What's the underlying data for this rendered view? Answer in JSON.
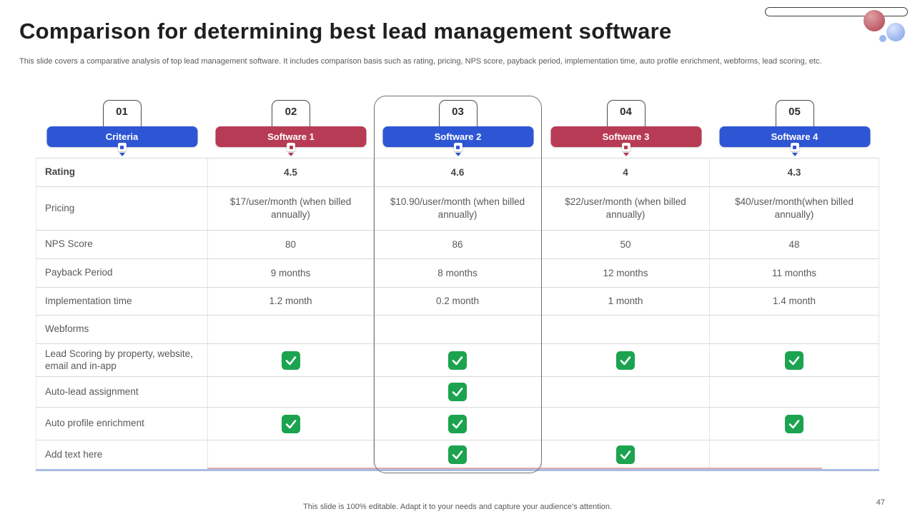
{
  "slide": {
    "title": "Comparison for determining best lead management software",
    "subtitle": "This slide covers a comparative analysis of top lead management software. It includes comparison basis such as rating, pricing, NPS score, payback period, implementation time, auto profile enrichment, webforms, lead scoring, etc.",
    "footer": "This slide is 100% editable. Adapt it to your needs and capture your audience's attention.",
    "page_number": "47"
  },
  "colors": {
    "blue_accent": "#2e56d4",
    "red_accent": "#b83b55",
    "check_green": "#1ca350"
  },
  "table": {
    "columns": [
      {
        "number": "01",
        "label": "Criteria",
        "color": "blue",
        "highlighted": false
      },
      {
        "number": "02",
        "label": "Software 1",
        "color": "red",
        "highlighted": false
      },
      {
        "number": "03",
        "label": "Software 2",
        "color": "blue",
        "highlighted": true
      },
      {
        "number": "04",
        "label": "Software 3",
        "color": "red",
        "highlighted": false
      },
      {
        "number": "05",
        "label": "Software 4",
        "color": "blue",
        "highlighted": false
      }
    ],
    "rows": [
      {
        "label": "Rating",
        "type": "text",
        "bold": true,
        "values": [
          "4.5",
          "4.6",
          "4",
          "4.3"
        ]
      },
      {
        "label": "Pricing",
        "type": "text",
        "bold": false,
        "values": [
          "$17/user/month (when billed annually)",
          "$10.90/user/month (when billed annually)",
          "$22/user/month (when billed annually)",
          "$40/user/month(when billed annually)"
        ]
      },
      {
        "label": "NPS Score",
        "type": "text",
        "bold": false,
        "values": [
          "80",
          "86",
          "50",
          "48"
        ]
      },
      {
        "label": "Payback Period",
        "type": "text",
        "bold": false,
        "values": [
          "9 months",
          "8 months",
          "12 months",
          "11 months"
        ]
      },
      {
        "label": "Implementation time",
        "type": "text",
        "bold": false,
        "values": [
          "1.2 month",
          "0.2 month",
          "1 month",
          "1.4 month"
        ]
      },
      {
        "label": "Webforms",
        "type": "check",
        "bold": false,
        "values": [
          false,
          false,
          false,
          false
        ]
      },
      {
        "label": "Lead Scoring by property, website, email and in-app",
        "type": "check",
        "bold": false,
        "values": [
          true,
          true,
          true,
          true
        ]
      },
      {
        "label": "Auto-lead assignment",
        "type": "check",
        "bold": false,
        "values": [
          false,
          true,
          false,
          false
        ]
      },
      {
        "label": "Auto profile enrichment",
        "type": "check",
        "bold": false,
        "values": [
          true,
          true,
          false,
          true
        ]
      },
      {
        "label": "Add text here",
        "type": "check",
        "bold": false,
        "values": [
          false,
          true,
          true,
          false
        ]
      }
    ]
  }
}
